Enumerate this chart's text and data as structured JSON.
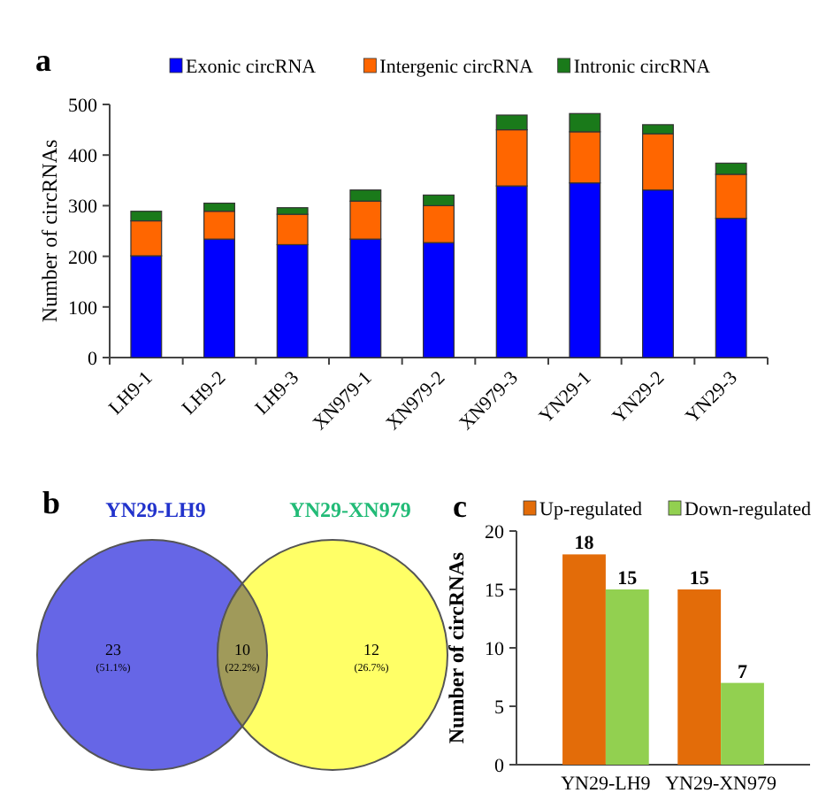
{
  "chart_data": [
    {
      "type": "bar",
      "stacked": true,
      "annotations": [
        "a"
      ],
      "ylabel": "Number of circRNAs",
      "categories": [
        "LH9-1",
        "LH9-2",
        "LH9-3",
        "XN979-1",
        "XN979-2",
        "XN979-3",
        "YN29-1",
        "YN29-2",
        "YN29-3"
      ],
      "series": [
        {
          "name": "Exonic circRNA",
          "color": "#0000ff",
          "values": [
            201,
            234,
            223,
            234,
            227,
            339,
            345,
            331,
            275
          ]
        },
        {
          "name": "Intergenic circRNA",
          "color": "#ff6600",
          "values": [
            69,
            55,
            60,
            75,
            73,
            111,
            101,
            111,
            87
          ]
        },
        {
          "name": "Intronic circRNA",
          "color": "#1a7a1a",
          "values": [
            19,
            16,
            13,
            22,
            21,
            29,
            36,
            18,
            22
          ]
        }
      ],
      "ylim": [
        0,
        500
      ],
      "yticks": [
        0,
        100,
        200,
        300,
        400,
        500
      ],
      "legend": "top"
    },
    {
      "type": "other",
      "annotations": [
        "b",
        "YN29-LH9",
        "YN29-XN979",
        "(51.1%)",
        "(22.2%)",
        "(26.7%)"
      ],
      "categories": [
        null,
        null,
        null
      ],
      "colors": [
        "#6666e6",
        "#a09a5a",
        "#ffff66"
      ],
      "values": [
        23,
        10,
        12
      ],
      "data_labels": true
    },
    {
      "type": "bar",
      "annotations": [
        "c"
      ],
      "ylabel": "Number of circRNAs",
      "categories": [
        "YN29-LH9",
        "YN29-XN979"
      ],
      "series": [
        {
          "name": "Up-regulated",
          "color": "#e36c09",
          "values": [
            18,
            15
          ]
        },
        {
          "name": "Down-regulated",
          "color": "#92d050",
          "values": [
            15,
            7
          ]
        }
      ],
      "ylim": [
        0,
        20
      ],
      "yticks": [
        0,
        5,
        10,
        15,
        20
      ],
      "data_labels": true,
      "legend": "top"
    }
  ]
}
